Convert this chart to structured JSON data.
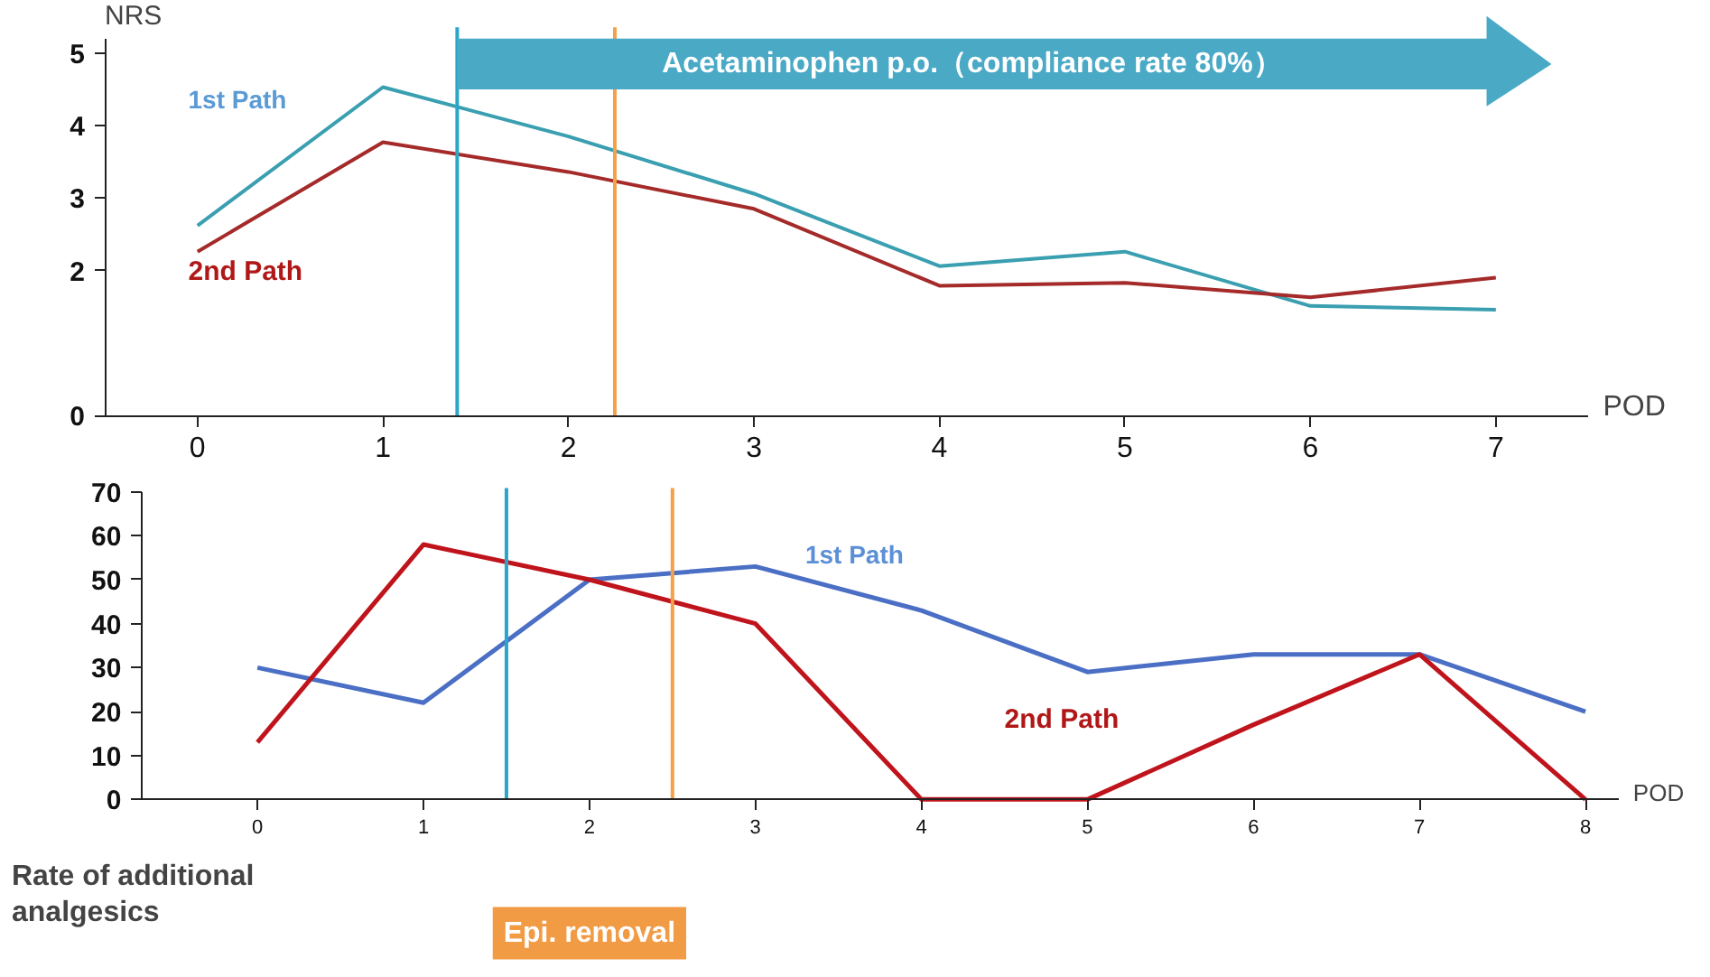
{
  "chart_data": [
    {
      "type": "line",
      "ylabel": "NRS",
      "xlabel": "POD",
      "x": [
        0,
        1,
        2,
        3,
        4,
        5,
        6,
        7
      ],
      "xlim": [
        -0.5,
        7.5
      ],
      "xticks": [
        0,
        1,
        2,
        3,
        4,
        5,
        6,
        7
      ],
      "ylim": [
        0,
        5.2
      ],
      "yticks": [
        0,
        2,
        3,
        4,
        5
      ],
      "grid": false,
      "legend": false,
      "series": [
        {
          "name": "1st Path",
          "color": "#3a9fb0",
          "values": [
            2.62,
            4.53,
            3.85,
            3.06,
            2.06,
            2.26,
            1.51,
            1.46
          ]
        },
        {
          "name": "2nd Path",
          "color": "#a52a2a",
          "values": [
            2.26,
            3.77,
            3.36,
            2.85,
            1.79,
            1.83,
            1.63,
            1.9
          ]
        }
      ],
      "ref_lines": [
        {
          "axis": "x",
          "value": 1.4,
          "color": "#2aa6c9"
        },
        {
          "axis": "x",
          "value": 2.25,
          "color": "#f5a04a"
        }
      ],
      "annotations": [
        "Acetaminophen p.o.（compliance rate 80%）"
      ]
    },
    {
      "type": "line",
      "ylabel": "Rate of additional analgesics",
      "xlabel": "POD",
      "x": [
        0,
        1,
        2,
        3,
        4,
        5,
        6,
        7,
        8
      ],
      "xlim": [
        -0.7,
        8.2
      ],
      "xticks": [
        0,
        1,
        2,
        3,
        4,
        5,
        6,
        7,
        8
      ],
      "ylim": [
        0,
        70
      ],
      "yticks": [
        0,
        10,
        20,
        30,
        40,
        50,
        60,
        70
      ],
      "grid": false,
      "legend": false,
      "series": [
        {
          "name": "1st Path",
          "color": "#4a6fc4",
          "values": [
            30,
            22,
            50,
            53,
            43,
            29,
            33,
            33,
            20
          ]
        },
        {
          "name": "2nd Path",
          "color": "#c0141c",
          "values": [
            13,
            58,
            50,
            40,
            0,
            0,
            17,
            33,
            0
          ]
        }
      ],
      "ref_lines": [
        {
          "axis": "x",
          "value": 1.5,
          "color": "#2aa6c9"
        },
        {
          "axis": "x",
          "value": 2.5,
          "color": "#f5a04a"
        }
      ],
      "annotations": [
        "Epi. removal"
      ]
    }
  ]
}
